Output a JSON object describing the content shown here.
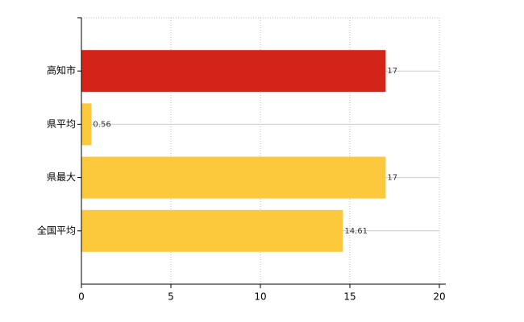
{
  "chart_data": {
    "type": "hbar",
    "categories": [
      "高知市",
      "県平均",
      "県最大",
      "全国平均"
    ],
    "values": [
      17,
      0.56,
      17,
      14.61
    ],
    "colors": [
      "#d42318",
      "#fcc93d",
      "#fcc93d",
      "#fcc93d"
    ],
    "xlim": [
      0,
      20
    ],
    "xticks": [
      0,
      5,
      10,
      15,
      20
    ],
    "grid": true
  }
}
